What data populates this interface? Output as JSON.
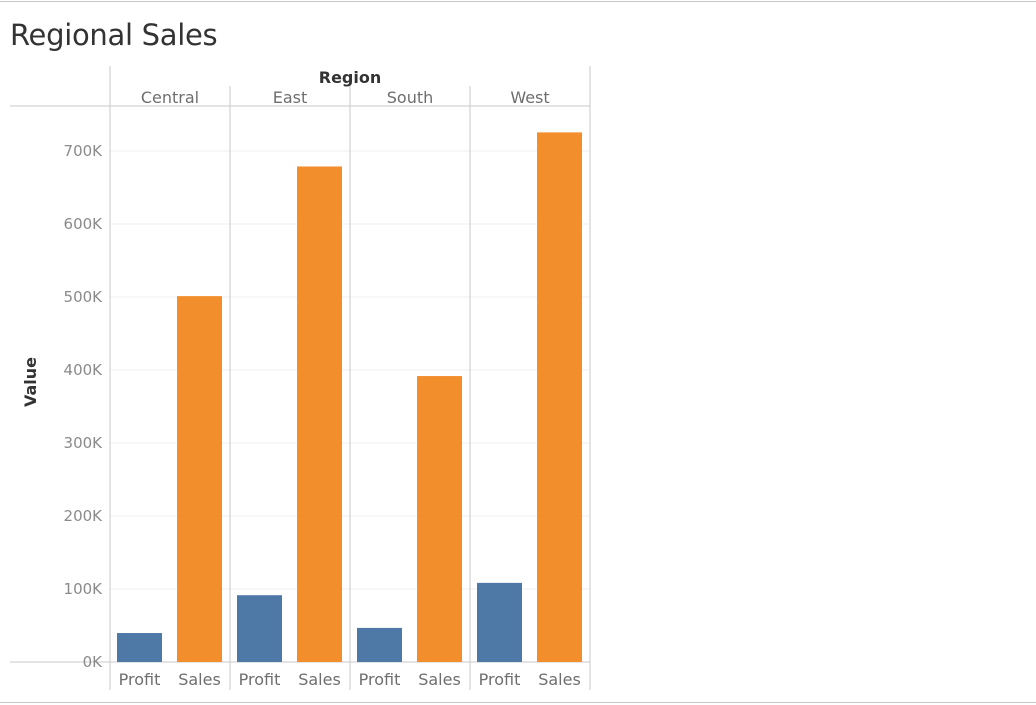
{
  "page": {
    "title": "Regional Sales"
  },
  "chart_data": {
    "type": "bar",
    "title": "Regional Sales",
    "column_header": "Region",
    "ylabel": "Value",
    "ylim": [
      0,
      760000
    ],
    "yticks": [
      0,
      100000,
      200000,
      300000,
      400000,
      500000,
      600000,
      700000
    ],
    "ytick_labels": [
      "0K",
      "100K",
      "200K",
      "300K",
      "400K",
      "500K",
      "600K",
      "700K"
    ],
    "grid": true,
    "categories": [
      "Central",
      "East",
      "South",
      "West"
    ],
    "measures": [
      "Profit",
      "Sales"
    ],
    "colors": {
      "Profit": "#4e79a7",
      "Sales": "#f28e2b"
    },
    "series": [
      {
        "name": "Profit",
        "values": [
          39700,
          91500,
          46700,
          108400
        ]
      },
      {
        "name": "Sales",
        "values": [
          501200,
          678800,
          391700,
          725500
        ]
      }
    ]
  }
}
